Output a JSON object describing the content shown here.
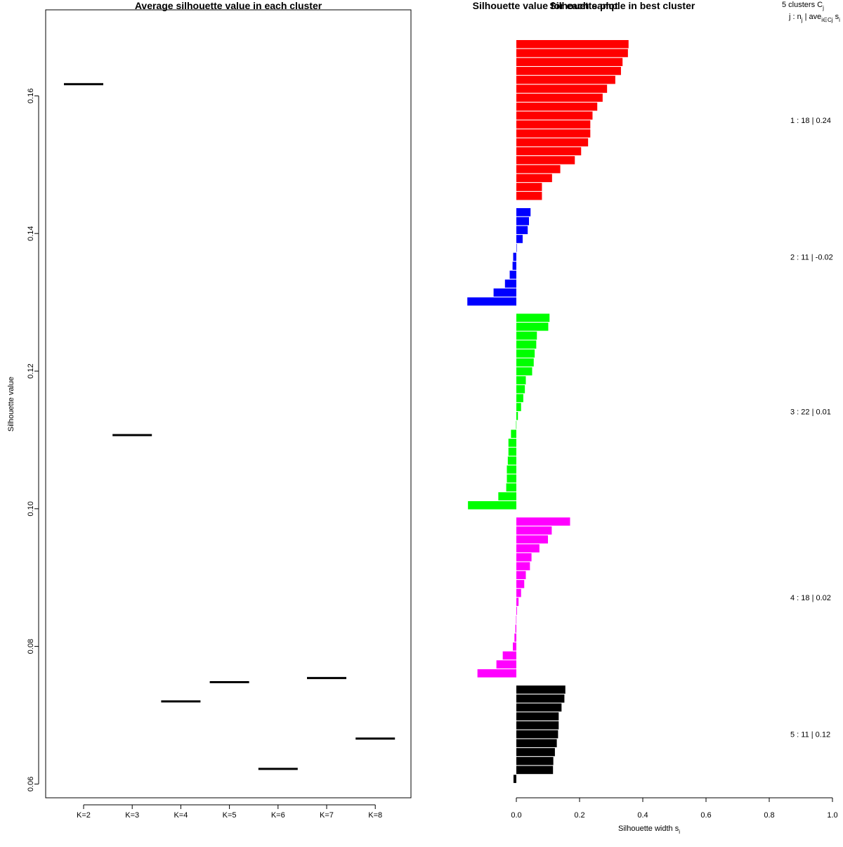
{
  "chart_data": [
    {
      "type": "line",
      "title": "Average silhouette value in each cluster",
      "xlabel": "",
      "ylabel": "Silhouette value",
      "categories": [
        "K=2",
        "K=3",
        "K=4",
        "K=5",
        "K=6",
        "K=7",
        "K=8"
      ],
      "values": [
        0.1617,
        0.1107,
        0.072,
        0.0748,
        0.0622,
        0.0754,
        0.0666
      ],
      "ylim": [
        0.058,
        0.1725
      ],
      "yticks": [
        "0.06",
        "0.08",
        "0.10",
        "0.12",
        "0.14",
        "0.16"
      ],
      "grid": false
    },
    {
      "type": "bar",
      "orientation": "horizontal",
      "title": "Silhouette value for each sample in best cluster",
      "overlap_title": "Silhouette plot",
      "xlabel": "Silhouette width s",
      "xlabel_sub": "i",
      "xlim": [
        0,
        1
      ],
      "xticks": [
        "0.0",
        "0.2",
        "0.4",
        "0.6",
        "0.8",
        "1.0"
      ],
      "legend_header_line1": "5  clusters  C",
      "legend_header_line1_sub": "j",
      "legend_header_line2_a": "j :  n",
      "legend_header_line2_a_sub": "j",
      "legend_header_line2_b": " | ave",
      "legend_header_line2_b_sub": "i∈Cj",
      "legend_header_line2_c": "  s",
      "legend_header_line2_c_sub": "i",
      "clusters": [
        {
          "label": "1 :  18  |  0.24",
          "color": "#ff0000",
          "values": [
            0.355,
            0.353,
            0.336,
            0.331,
            0.313,
            0.287,
            0.273,
            0.256,
            0.241,
            0.234,
            0.234,
            0.227,
            0.205,
            0.185,
            0.139,
            0.113,
            0.081,
            0.081
          ]
        },
        {
          "label": "2 :  11  |  -0.02",
          "color": "#0000ff",
          "values": [
            0.045,
            0.04,
            0.036,
            0.02,
            0.001,
            -0.01,
            -0.012,
            -0.021,
            -0.036,
            -0.072,
            -0.155
          ]
        },
        {
          "label": "3 :  22  |  0.01",
          "color": "#00ff00",
          "values": [
            0.105,
            0.101,
            0.065,
            0.063,
            0.058,
            0.055,
            0.05,
            0.03,
            0.027,
            0.022,
            0.015,
            0.005,
            -0.001,
            -0.017,
            -0.025,
            -0.025,
            -0.027,
            -0.03,
            -0.03,
            -0.032,
            -0.057,
            -0.153
          ]
        },
        {
          "label": "4 :  18  |  0.02",
          "color": "#ff00ff",
          "values": [
            0.17,
            0.112,
            0.1,
            0.073,
            0.048,
            0.043,
            0.03,
            0.025,
            0.015,
            0.007,
            0.002,
            -0.001,
            -0.003,
            -0.006,
            -0.011,
            -0.043,
            -0.063,
            -0.123
          ]
        },
        {
          "label": "5 :  11  |  0.12",
          "color": "#000000",
          "values": [
            0.155,
            0.152,
            0.143,
            0.134,
            0.134,
            0.132,
            0.128,
            0.122,
            0.117,
            0.116,
            -0.009
          ]
        }
      ]
    }
  ]
}
